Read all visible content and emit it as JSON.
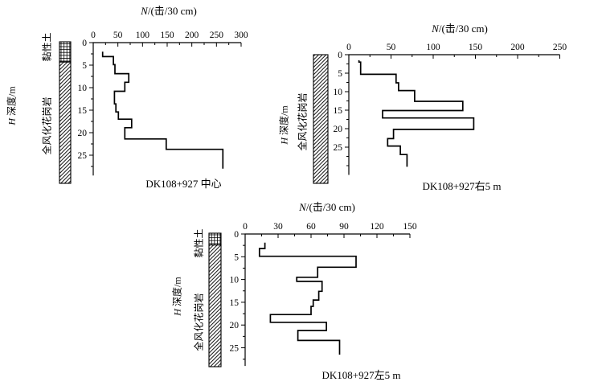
{
  "figure": {
    "ink_color": "#000000",
    "background": "#ffffff"
  },
  "chart_data": [
    {
      "id": "center",
      "type": "line",
      "subtype": "step-profile",
      "title_variable": "N",
      "title_unit": "/(击/30 cm)",
      "depth_label_variable": "H",
      "depth_label_rest": " 深度/m",
      "caption": "DK108+927 中心",
      "xlim": [
        0,
        300
      ],
      "x_tick_labels": [
        0,
        50,
        100,
        150,
        200,
        250,
        300
      ],
      "x_minor_step": 25,
      "depth_tick_labels": [
        0,
        5,
        10,
        15,
        20,
        25
      ],
      "depth_minor_step": 2.5,
      "depth_axis_end": 29.5,
      "legend": "none",
      "lithology_column": [
        {
          "label": "黏性土",
          "pattern": "crosshatch",
          "depth_from": 0,
          "depth_to": 4.3
        },
        {
          "label": "全风化花岗岩",
          "pattern": "diagonal-hatch",
          "depth_from": 4.3,
          "depth_to": 31.5
        }
      ],
      "steps": [
        {
          "n": 19,
          "from": 2.0,
          "to": 3.1
        },
        {
          "n": 41,
          "from": 3.1,
          "to": 4.9
        },
        {
          "n": 44,
          "from": 4.9,
          "to": 6.9
        },
        {
          "n": 72,
          "from": 6.9,
          "to": 8.8
        },
        {
          "n": 64,
          "from": 8.8,
          "to": 10.8
        },
        {
          "n": 43,
          "from": 10.8,
          "to": 13.6
        },
        {
          "n": 46,
          "from": 13.6,
          "to": 15.4
        },
        {
          "n": 51,
          "from": 15.4,
          "to": 17.0
        },
        {
          "n": 78,
          "from": 17.0,
          "to": 18.9
        },
        {
          "n": 64,
          "from": 18.9,
          "to": 21.4
        },
        {
          "n": 148,
          "from": 21.4,
          "to": 23.7
        },
        {
          "n": 263,
          "from": 23.7,
          "to": 28.0
        }
      ]
    },
    {
      "id": "right5m",
      "type": "line",
      "subtype": "step-profile",
      "title_variable": "N",
      "title_unit": "/(击/30 cm)",
      "depth_label_variable": "H",
      "depth_label_rest": " 深度/m",
      "caption": "DK108+927右5 m",
      "xlim": [
        0,
        250
      ],
      "x_tick_labels": [
        0,
        50,
        100,
        150,
        200,
        250
      ],
      "x_minor_step": 25,
      "depth_tick_labels": [
        0,
        5,
        10,
        15,
        20,
        25
      ],
      "depth_minor_step": 2.5,
      "depth_axis_end": 32.5,
      "legend": "none",
      "lithology_column": [
        {
          "label": "全风化花岗岩",
          "pattern": "diagonal-hatch",
          "depth_from": 0,
          "depth_to": 35
        }
      ],
      "steps": [
        {
          "n": 12,
          "from": 1.5,
          "to": 2.0
        },
        {
          "n": 14,
          "from": 2.0,
          "to": 5.3
        },
        {
          "n": 56,
          "from": 5.3,
          "to": 7.6
        },
        {
          "n": 59,
          "from": 7.6,
          "to": 9.7
        },
        {
          "n": 78,
          "from": 9.7,
          "to": 12.6
        },
        {
          "n": 135,
          "from": 12.6,
          "to": 15.1
        },
        {
          "n": 40,
          "from": 15.1,
          "to": 17.1
        },
        {
          "n": 148,
          "from": 17.1,
          "to": 20.2
        },
        {
          "n": 53,
          "from": 20.2,
          "to": 22.7
        },
        {
          "n": 46,
          "from": 22.7,
          "to": 24.7
        },
        {
          "n": 61,
          "from": 24.7,
          "to": 27.0
        },
        {
          "n": 69,
          "from": 27.0,
          "to": 30.3
        }
      ]
    },
    {
      "id": "left5m",
      "type": "line",
      "subtype": "step-profile",
      "title_variable": "N",
      "title_unit": "/(击/30 cm)",
      "depth_label_variable": "H",
      "depth_label_rest": " 深度/m",
      "caption": "DK108+927左5 m",
      "xlim": [
        0,
        150
      ],
      "x_tick_labels": [
        0,
        30,
        60,
        90,
        120,
        150
      ],
      "x_minor_step": 15,
      "depth_tick_labels": [
        0,
        5,
        10,
        15,
        20,
        25
      ],
      "depth_minor_step": 2.5,
      "depth_axis_end": 29,
      "legend": "none",
      "lithology_column": [
        {
          "label": "黏性土",
          "pattern": "crosshatch",
          "depth_from": 0,
          "depth_to": 2.4
        },
        {
          "label": "全风化花岗岩",
          "pattern": "diagonal-hatch",
          "depth_from": 2.4,
          "depth_to": 29.5
        }
      ],
      "steps": [
        {
          "n": 18,
          "from": 1.9,
          "to": 3.2
        },
        {
          "n": 13,
          "from": 3.2,
          "to": 4.9
        },
        {
          "n": 101,
          "from": 4.9,
          "to": 7.3
        },
        {
          "n": 66,
          "from": 7.3,
          "to": 9.5
        },
        {
          "n": 47,
          "from": 9.5,
          "to": 10.4
        },
        {
          "n": 70,
          "from": 10.4,
          "to": 12.6
        },
        {
          "n": 67,
          "from": 12.6,
          "to": 14.5
        },
        {
          "n": 62,
          "from": 14.5,
          "to": 15.9
        },
        {
          "n": 60,
          "from": 15.9,
          "to": 17.7
        },
        {
          "n": 23,
          "from": 17.7,
          "to": 19.4
        },
        {
          "n": 74,
          "from": 19.4,
          "to": 21.2
        },
        {
          "n": 48,
          "from": 21.2,
          "to": 23.4
        },
        {
          "n": 86,
          "from": 23.4,
          "to": 26.5
        }
      ]
    }
  ]
}
